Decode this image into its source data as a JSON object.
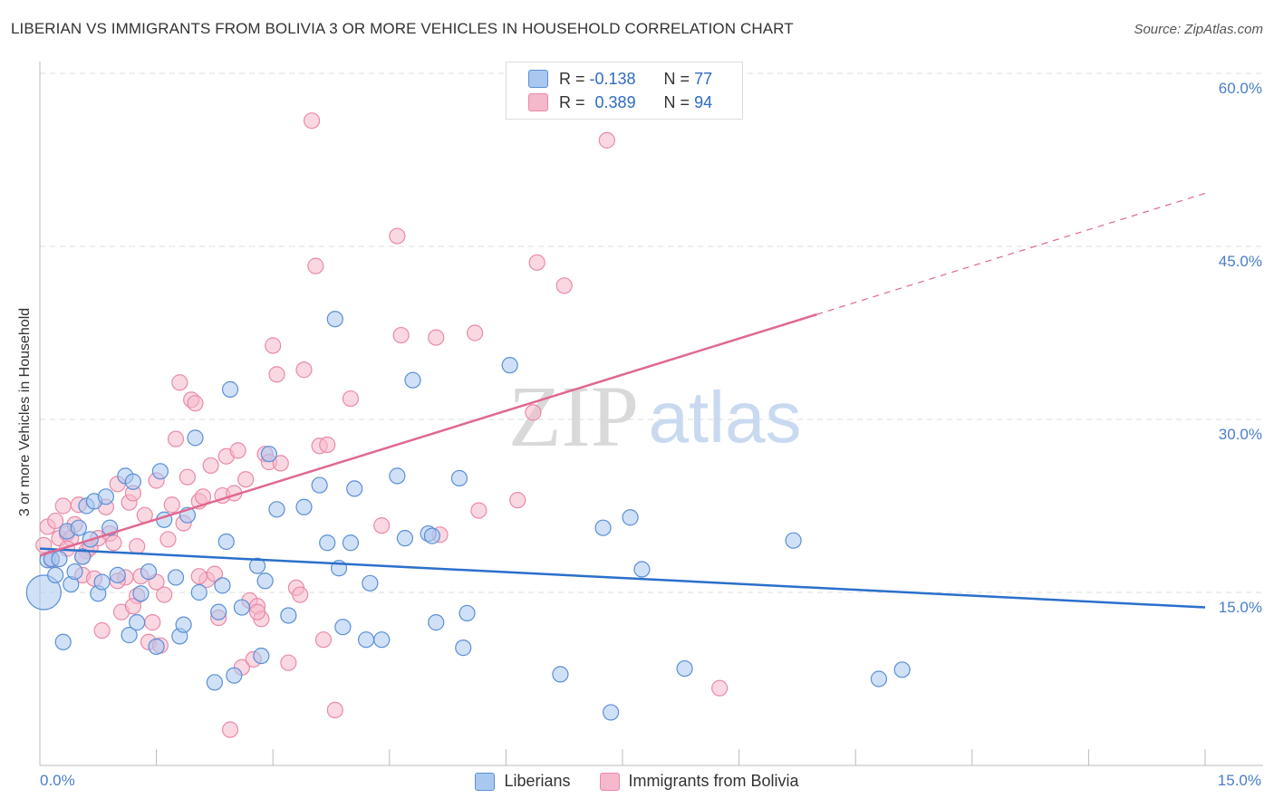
{
  "title": "LIBERIAN VS IMMIGRANTS FROM BOLIVIA 3 OR MORE VEHICLES IN HOUSEHOLD CORRELATION CHART",
  "source": "Source: ZipAtlas.com",
  "watermark": {
    "zip": "ZIP",
    "atlas": "atlas"
  },
  "legend": {
    "r_label": "R =",
    "n_label": "N =",
    "series": [
      {
        "r": "-0.138",
        "n": "77"
      },
      {
        "r": "0.389",
        "n": "94"
      }
    ]
  },
  "colors": {
    "liberians_fill": "#a9c8f0",
    "liberians_stroke": "#5b8fd6",
    "liberians_line": "#2b6fcb",
    "bolivia_fill": "#f6b8cb",
    "bolivia_stroke": "#e98aa9",
    "bolivia_line": "#e06891",
    "tick_text": "#4a7ec9"
  },
  "chart_data": {
    "type": "scatter",
    "title": "LIBERIAN VS IMMIGRANTS FROM BOLIVIA 3 OR MORE VEHICLES IN HOUSEHOLD CORRELATION CHART",
    "xlabel": "",
    "ylabel": "3 or more Vehicles in Household",
    "xlim": [
      0,
      15
    ],
    "ylim": [
      0,
      60
    ],
    "x_tick_labels": [
      "0.0%",
      "15.0%"
    ],
    "y_ticks": [
      15,
      30,
      45,
      60
    ],
    "y_tick_labels": [
      "15.0%",
      "30.0%",
      "45.0%",
      "60.0%"
    ],
    "grid": true,
    "legend_position": "bottom",
    "series": [
      {
        "name": "Liberians",
        "r": -0.138,
        "n": 77,
        "trend": {
          "x0": 0,
          "y0": 18.8,
          "x1": 15,
          "y1": 13.7
        },
        "points": [
          [
            0.05,
            15.0
          ],
          [
            0.1,
            17.8
          ],
          [
            0.15,
            17.9
          ],
          [
            0.2,
            16.5
          ],
          [
            0.25,
            17.9
          ],
          [
            0.3,
            10.7
          ],
          [
            0.35,
            20.3
          ],
          [
            0.4,
            15.7
          ],
          [
            0.45,
            16.8
          ],
          [
            0.5,
            20.6
          ],
          [
            0.55,
            18.1
          ],
          [
            0.6,
            22.5
          ],
          [
            0.65,
            19.6
          ],
          [
            0.7,
            22.9
          ],
          [
            0.75,
            14.9
          ],
          [
            0.8,
            15.9
          ],
          [
            0.85,
            23.3
          ],
          [
            0.9,
            20.6
          ],
          [
            1.0,
            16.5
          ],
          [
            1.1,
            25.1
          ],
          [
            1.15,
            11.3
          ],
          [
            1.2,
            24.6
          ],
          [
            1.25,
            12.4
          ],
          [
            1.3,
            14.9
          ],
          [
            1.4,
            16.8
          ],
          [
            1.5,
            10.3
          ],
          [
            1.55,
            25.5
          ],
          [
            1.6,
            21.3
          ],
          [
            1.75,
            16.3
          ],
          [
            1.8,
            11.2
          ],
          [
            1.85,
            12.2
          ],
          [
            1.9,
            21.7
          ],
          [
            2.0,
            28.4
          ],
          [
            2.05,
            15.0
          ],
          [
            2.25,
            7.2
          ],
          [
            2.3,
            13.3
          ],
          [
            2.35,
            15.6
          ],
          [
            2.4,
            19.4
          ],
          [
            2.45,
            32.6
          ],
          [
            2.5,
            7.8
          ],
          [
            2.6,
            13.7
          ],
          [
            2.8,
            17.3
          ],
          [
            2.85,
            9.5
          ],
          [
            2.9,
            16.0
          ],
          [
            2.95,
            27.0
          ],
          [
            3.05,
            22.2
          ],
          [
            3.2,
            13.0
          ],
          [
            3.4,
            22.4
          ],
          [
            3.6,
            24.3
          ],
          [
            3.7,
            19.3
          ],
          [
            3.8,
            38.7
          ],
          [
            3.85,
            17.1
          ],
          [
            3.9,
            12.0
          ],
          [
            4.0,
            19.3
          ],
          [
            4.05,
            24.0
          ],
          [
            4.2,
            10.9
          ],
          [
            4.25,
            15.8
          ],
          [
            4.4,
            10.9
          ],
          [
            4.6,
            25.1
          ],
          [
            4.7,
            19.7
          ],
          [
            4.8,
            33.4
          ],
          [
            5.0,
            20.1
          ],
          [
            5.05,
            19.9
          ],
          [
            5.1,
            12.4
          ],
          [
            5.4,
            24.9
          ],
          [
            5.45,
            10.2
          ],
          [
            5.5,
            13.2
          ],
          [
            6.05,
            34.7
          ],
          [
            6.7,
            7.9
          ],
          [
            7.25,
            20.6
          ],
          [
            7.35,
            4.6
          ],
          [
            7.6,
            21.5
          ],
          [
            7.75,
            17.0
          ],
          [
            8.3,
            8.4
          ],
          [
            9.7,
            19.5
          ],
          [
            10.8,
            7.5
          ],
          [
            11.1,
            8.3
          ]
        ]
      },
      {
        "name": "Immigrants from Bolivia",
        "r": 0.389,
        "n": 94,
        "trend": {
          "x0": 0,
          "y0": 18.2,
          "x1": 10.0,
          "y1": 39.1
        },
        "trend_dashed_end": {
          "x": 15,
          "y": 49.6
        },
        "points": [
          [
            0.05,
            19.1
          ],
          [
            0.1,
            20.7
          ],
          [
            0.15,
            17.8
          ],
          [
            0.2,
            21.2
          ],
          [
            0.25,
            19.7
          ],
          [
            0.3,
            22.5
          ],
          [
            0.35,
            20.1
          ],
          [
            0.4,
            19.7
          ],
          [
            0.45,
            20.9
          ],
          [
            0.5,
            22.6
          ],
          [
            0.55,
            16.5
          ],
          [
            0.6,
            18.6
          ],
          [
            0.65,
            18.9
          ],
          [
            0.7,
            16.2
          ],
          [
            0.75,
            19.7
          ],
          [
            0.8,
            11.7
          ],
          [
            0.85,
            22.4
          ],
          [
            0.9,
            20.1
          ],
          [
            0.95,
            19.3
          ],
          [
            1.0,
            24.4
          ],
          [
            1.05,
            13.3
          ],
          [
            1.1,
            16.3
          ],
          [
            1.15,
            22.8
          ],
          [
            1.2,
            23.6
          ],
          [
            1.25,
            19.0
          ],
          [
            1.3,
            16.4
          ],
          [
            1.35,
            21.7
          ],
          [
            1.4,
            10.7
          ],
          [
            1.45,
            12.4
          ],
          [
            1.5,
            24.7
          ],
          [
            1.55,
            10.4
          ],
          [
            1.6,
            14.8
          ],
          [
            1.65,
            19.6
          ],
          [
            1.7,
            22.6
          ],
          [
            1.75,
            28.3
          ],
          [
            1.8,
            33.2
          ],
          [
            1.85,
            21.0
          ],
          [
            1.9,
            25.0
          ],
          [
            1.95,
            31.7
          ],
          [
            2.0,
            31.4
          ],
          [
            2.05,
            22.9
          ],
          [
            2.1,
            23.3
          ],
          [
            2.15,
            16.1
          ],
          [
            2.2,
            26.0
          ],
          [
            2.25,
            16.6
          ],
          [
            2.3,
            12.8
          ],
          [
            2.35,
            23.4
          ],
          [
            2.4,
            26.8
          ],
          [
            2.45,
            3.1
          ],
          [
            2.5,
            23.6
          ],
          [
            2.55,
            27.3
          ],
          [
            2.6,
            8.5
          ],
          [
            2.65,
            24.8
          ],
          [
            2.7,
            14.3
          ],
          [
            2.75,
            9.2
          ],
          [
            2.8,
            13.8
          ],
          [
            2.85,
            12.7
          ],
          [
            2.9,
            27.0
          ],
          [
            2.95,
            26.3
          ],
          [
            3.0,
            36.4
          ],
          [
            3.05,
            33.9
          ],
          [
            3.1,
            26.2
          ],
          [
            3.2,
            8.9
          ],
          [
            3.3,
            15.4
          ],
          [
            3.35,
            14.8
          ],
          [
            3.4,
            34.3
          ],
          [
            3.5,
            55.9
          ],
          [
            3.55,
            43.3
          ],
          [
            3.6,
            27.7
          ],
          [
            3.65,
            10.9
          ],
          [
            3.7,
            27.8
          ],
          [
            3.8,
            4.8
          ],
          [
            4.0,
            31.8
          ],
          [
            4.4,
            20.8
          ],
          [
            4.6,
            45.9
          ],
          [
            4.65,
            37.3
          ],
          [
            5.1,
            37.1
          ],
          [
            5.15,
            20.0
          ],
          [
            5.6,
            37.5
          ],
          [
            5.65,
            22.1
          ],
          [
            6.15,
            23.0
          ],
          [
            6.35,
            30.6
          ],
          [
            6.4,
            43.6
          ],
          [
            6.75,
            41.6
          ],
          [
            7.3,
            54.2
          ],
          [
            8.75,
            6.7
          ],
          [
            1.25,
            14.7
          ],
          [
            0.55,
            18.1
          ],
          [
            1.5,
            15.9
          ],
          [
            2.8,
            13.3
          ],
          [
            1.0,
            16.0
          ],
          [
            1.2,
            13.8
          ],
          [
            0.35,
            18.8
          ],
          [
            2.05,
            16.4
          ]
        ]
      }
    ]
  }
}
